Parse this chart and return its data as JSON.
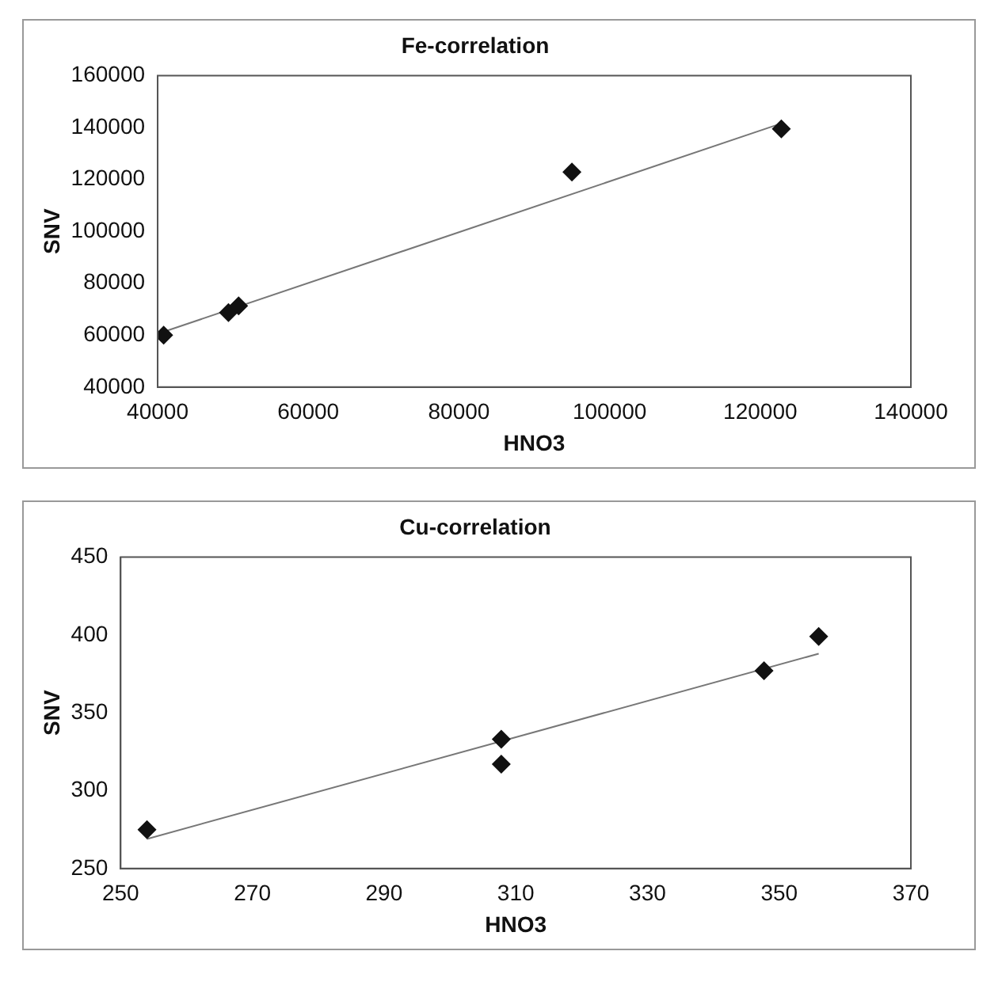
{
  "chart_data": [
    {
      "type": "scatter",
      "title": "Fe-correlation",
      "xlabel": "HNO3",
      "ylabel": "SNV",
      "xlim": [
        40000,
        140000
      ],
      "xticks": [
        40000,
        60000,
        80000,
        100000,
        120000,
        140000
      ],
      "ylim": [
        40000,
        160000
      ],
      "yticks": [
        40000,
        60000,
        80000,
        100000,
        120000,
        140000,
        160000
      ],
      "grid": false,
      "legend": false,
      "series": [
        {
          "type": "scatter",
          "color": "#111111",
          "marker": "diamond",
          "x": [
            40800,
            49400,
            50750,
            95000,
            122800
          ],
          "values": [
            60000,
            68700,
            71300,
            122900,
            139500
          ]
        },
        {
          "type": "line",
          "color": "#777777",
          "marker": "none",
          "line_style": "solid",
          "x": [
            40800,
            122800
          ],
          "values": [
            61300,
            141600
          ]
        }
      ]
    },
    {
      "type": "scatter",
      "title": "Cu-correlation",
      "xlabel": "HNO3",
      "ylabel": "SNV",
      "xlim": [
        250,
        370
      ],
      "xticks": [
        250,
        270,
        290,
        310,
        330,
        350,
        370
      ],
      "ylim": [
        250,
        450
      ],
      "yticks": [
        250,
        300,
        350,
        400,
        450
      ],
      "grid": false,
      "legend": false,
      "series": [
        {
          "type": "scatter",
          "color": "#111111",
          "marker": "diamond",
          "x": [
            254,
            307.8,
            307.8,
            347.7,
            356
          ],
          "values": [
            275,
            333,
            317,
            377,
            399
          ]
        },
        {
          "type": "line",
          "color": "#777777",
          "marker": "none",
          "line_style": "solid",
          "x": [
            254,
            356
          ],
          "values": [
            269,
            388
          ]
        }
      ]
    }
  ]
}
